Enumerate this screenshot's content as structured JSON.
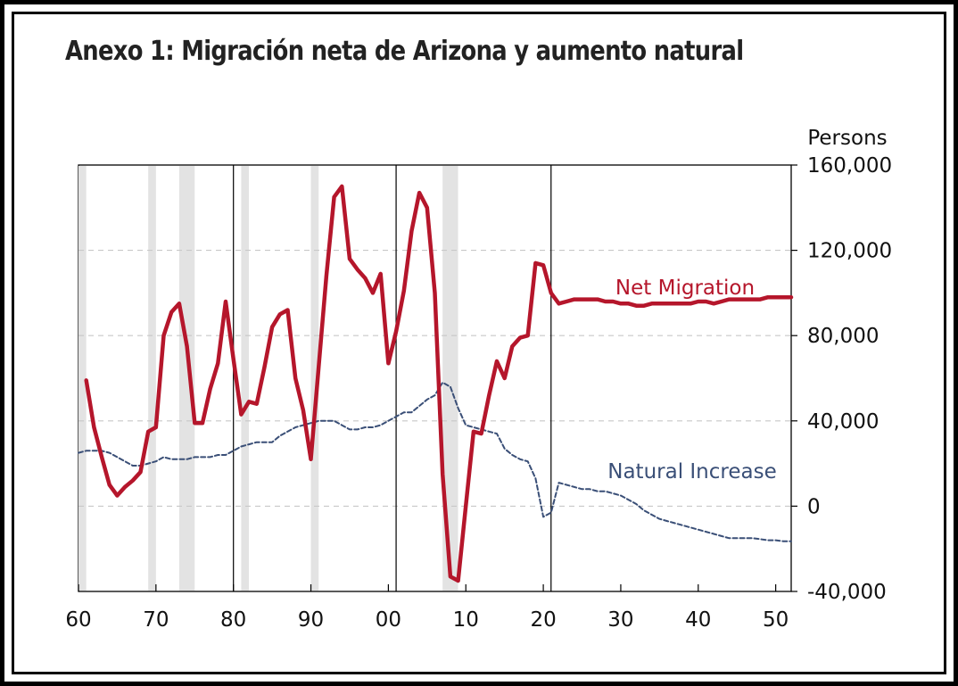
{
  "chart_data": {
    "type": "line",
    "title": "Anexo 1: Migración neta de Arizona y aumento natural",
    "ylabel": "Persons",
    "xlim": [
      1960,
      2052
    ],
    "ylim": [
      -40000,
      160000
    ],
    "x_ticks": [
      1960,
      1970,
      1980,
      1990,
      2000,
      2010,
      2020,
      2030,
      2040,
      2050
    ],
    "x_tick_labels": [
      "60",
      "70",
      "80",
      "90",
      "00",
      "10",
      "20",
      "30",
      "40",
      "50"
    ],
    "y_ticks": [
      -40000,
      0,
      40000,
      80000,
      120000,
      160000
    ],
    "y_tick_labels": [
      "-40,000",
      "0",
      "40,000",
      "80,000",
      "120,000",
      "160,000"
    ],
    "gridlines": [
      0,
      40000,
      80000,
      120000
    ],
    "recessions": [
      [
        1960,
        1961
      ],
      [
        1969,
        1970
      ],
      [
        1973,
        1975
      ],
      [
        1981,
        1982
      ],
      [
        1990,
        1991
      ],
      [
        2007,
        2009
      ]
    ],
    "vertical_lines": [
      1980,
      2001,
      2021
    ],
    "series": [
      {
        "name": "Net Migration",
        "label": "Net Migration",
        "color": "#b5162b",
        "style": "solid",
        "x": [
          1961,
          1962,
          1963,
          1964,
          1965,
          1966,
          1967,
          1968,
          1969,
          1970,
          1971,
          1972,
          1973,
          1974,
          1975,
          1976,
          1977,
          1978,
          1979,
          1980,
          1981,
          1982,
          1983,
          1984,
          1985,
          1986,
          1987,
          1988,
          1989,
          1990,
          1991,
          1992,
          1993,
          1994,
          1995,
          1996,
          1997,
          1998,
          1999,
          2000,
          2001,
          2002,
          2003,
          2004,
          2005,
          2006,
          2007,
          2008,
          2009,
          2010,
          2011,
          2012,
          2013,
          2014,
          2015,
          2016,
          2017,
          2018,
          2019,
          2020,
          2021,
          2022,
          2023,
          2024,
          2025,
          2026,
          2027,
          2028,
          2029,
          2030,
          2031,
          2032,
          2033,
          2034,
          2035,
          2036,
          2037,
          2038,
          2039,
          2040,
          2041,
          2042,
          2043,
          2044,
          2045,
          2046,
          2047,
          2048,
          2049,
          2050,
          2051,
          2052
        ],
        "values": [
          59000,
          37000,
          23000,
          10000,
          5000,
          9000,
          12000,
          16000,
          35000,
          37000,
          80000,
          91000,
          95000,
          75000,
          39000,
          39000,
          55000,
          67000,
          96000,
          69000,
          43000,
          49000,
          48000,
          65000,
          84000,
          90000,
          92000,
          60000,
          45000,
          22000,
          65000,
          108000,
          145000,
          150000,
          116000,
          111000,
          107000,
          100000,
          109000,
          67000,
          82000,
          101000,
          129000,
          147000,
          140000,
          100000,
          15000,
          -33000,
          -35000,
          0,
          35000,
          34000,
          52000,
          68000,
          60000,
          75000,
          79000,
          80000,
          114000,
          113000,
          100000,
          95000,
          96000,
          97000,
          97000,
          97000,
          97000,
          96000,
          96000,
          95000,
          95000,
          94000,
          94000,
          95000,
          95000,
          95000,
          95000,
          95000,
          95000,
          96000,
          96000,
          95000,
          96000,
          97000,
          97000,
          97000,
          97000,
          97000,
          98000,
          98000,
          98000,
          98000
        ],
        "annotation": "Net Migration"
      },
      {
        "name": "Natural Increase",
        "label": "Natural Increase",
        "color": "#3a4f77",
        "style": "dashed",
        "x": [
          1960,
          1961,
          1962,
          1963,
          1964,
          1965,
          1966,
          1967,
          1968,
          1969,
          1970,
          1971,
          1972,
          1973,
          1974,
          1975,
          1976,
          1977,
          1978,
          1979,
          1980,
          1981,
          1982,
          1983,
          1984,
          1985,
          1986,
          1987,
          1988,
          1989,
          1990,
          1991,
          1992,
          1993,
          1994,
          1995,
          1996,
          1997,
          1998,
          1999,
          2000,
          2001,
          2002,
          2003,
          2004,
          2005,
          2006,
          2007,
          2008,
          2009,
          2010,
          2011,
          2012,
          2013,
          2014,
          2015,
          2016,
          2017,
          2018,
          2019,
          2020,
          2021,
          2022,
          2023,
          2024,
          2025,
          2026,
          2027,
          2028,
          2029,
          2030,
          2031,
          2032,
          2033,
          2034,
          2035,
          2036,
          2037,
          2038,
          2039,
          2040,
          2041,
          2042,
          2043,
          2044,
          2045,
          2046,
          2047,
          2048,
          2049,
          2050,
          2051,
          2052
        ],
        "values": [
          25000,
          26000,
          26000,
          26000,
          25000,
          23000,
          21000,
          19000,
          19000,
          20000,
          21000,
          23000,
          22000,
          22000,
          22000,
          23000,
          23000,
          23000,
          24000,
          24000,
          26000,
          28000,
          29000,
          30000,
          30000,
          30000,
          33000,
          35000,
          37000,
          38000,
          39000,
          40000,
          40000,
          40000,
          38000,
          36000,
          36000,
          37000,
          37000,
          38000,
          40000,
          42000,
          44000,
          44000,
          47000,
          50000,
          52000,
          58000,
          56000,
          46000,
          38000,
          37000,
          36000,
          35000,
          34000,
          27000,
          24000,
          22000,
          21000,
          13000,
          -5000,
          -3000,
          11000,
          10000,
          9000,
          8000,
          8000,
          7000,
          7000,
          6000,
          5000,
          3000,
          1000,
          -2000,
          -4000,
          -6000,
          -7000,
          -8000,
          -9000,
          -10000,
          -11000,
          -12000,
          -13000,
          -14000,
          -15000,
          -15000,
          -15000,
          -15000,
          -15500,
          -16000,
          -16000,
          -16500,
          -16500
        ],
        "annotation": "Natural Increase"
      }
    ]
  }
}
